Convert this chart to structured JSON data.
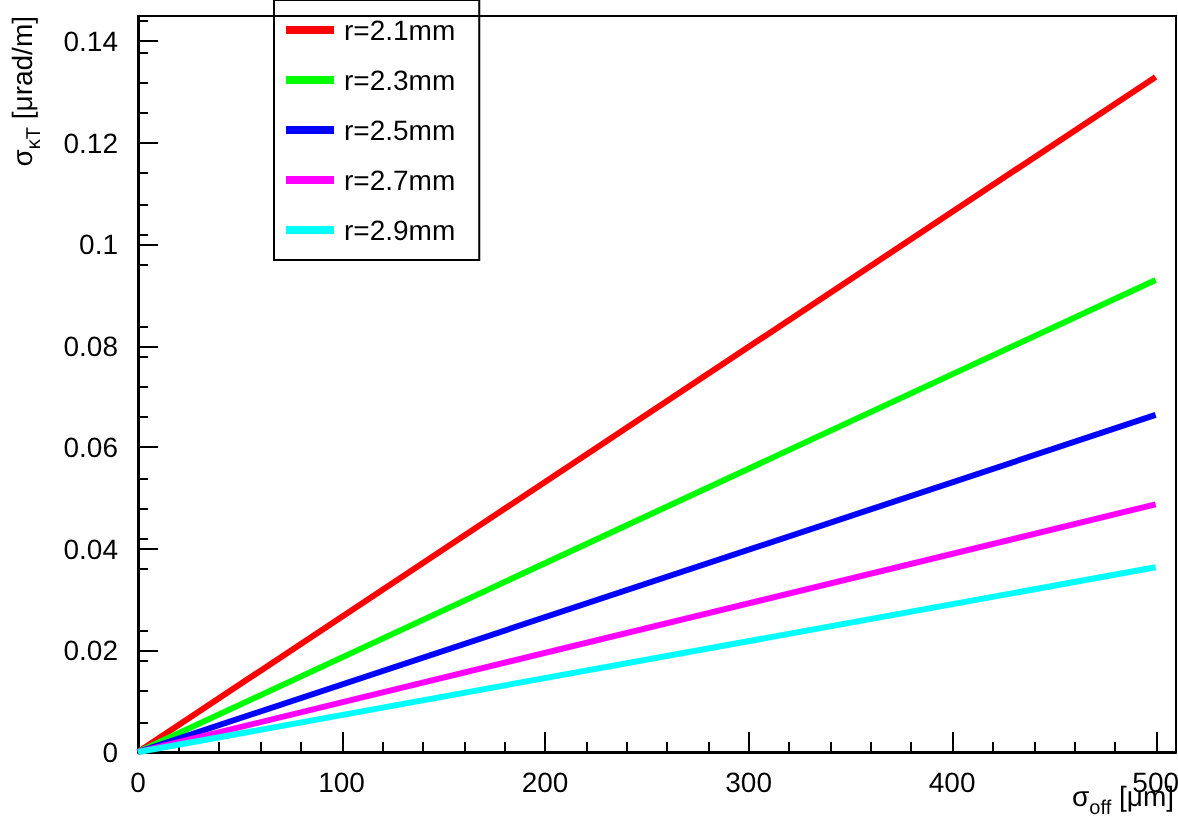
{
  "chart_data": {
    "type": "line",
    "xlabel": "σ$_{off}$ [μm]",
    "ylabel": "σ$_{κT}$ [μrad/m]",
    "x": [
      0,
      500
    ],
    "series": [
      {
        "name": "r=2.1mm",
        "color": "#ff0000",
        "values": [
          0,
          0.133
        ]
      },
      {
        "name": "r=2.3mm",
        "color": "#00ff00",
        "values": [
          0,
          0.093
        ]
      },
      {
        "name": "r=2.5mm",
        "color": "#0000ff",
        "values": [
          0,
          0.0664
        ]
      },
      {
        "name": "r=2.7mm",
        "color": "#ff00ff",
        "values": [
          0,
          0.0488
        ]
      },
      {
        "name": "r=2.9mm",
        "color": "#00ffff",
        "values": [
          0,
          0.0364
        ]
      }
    ],
    "xlim": [
      0,
      510
    ],
    "xticks": [
      0,
      100,
      200,
      300,
      400,
      500
    ],
    "ylim": [
      0,
      0.145
    ],
    "yticks": [
      0,
      0.02,
      0.04,
      0.06,
      0.08,
      0.1,
      0.12,
      0.14
    ],
    "grid": false,
    "legend": "top left",
    "marker": "none",
    "line_style": "solid"
  }
}
